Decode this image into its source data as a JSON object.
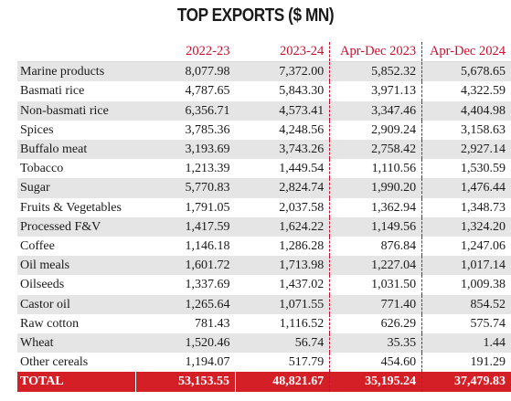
{
  "title": "TOP EXPORTS ($ MN)",
  "chart_data": {
    "type": "table",
    "title": "TOP EXPORTS ($ MN)",
    "columns": [
      "2022-23",
      "2023-24",
      "Apr-Dec 2023",
      "Apr-Dec 2024"
    ],
    "rows": [
      {
        "label": "Marine products",
        "values": [
          "8,077.98",
          "7,372.00",
          "5,852.32",
          "5,678.65"
        ]
      },
      {
        "label": "Basmati rice",
        "values": [
          "4,787.65",
          "5,843.30",
          "3,971.13",
          "4,322.59"
        ]
      },
      {
        "label": "Non-basmati rice",
        "values": [
          "6,356.71",
          "4,573.41",
          "3,347.46",
          "4,404.98"
        ]
      },
      {
        "label": "Spices",
        "values": [
          "3,785.36",
          "4,248.56",
          "2,909.24",
          "3,158.63"
        ]
      },
      {
        "label": "Buffalo meat",
        "values": [
          "3,193.69",
          "3,743.26",
          "2,758.42",
          "2,927.14"
        ]
      },
      {
        "label": "Tobacco",
        "values": [
          "1,213.39",
          "1,449.54",
          "1,110.56",
          "1,530.59"
        ]
      },
      {
        "label": "Sugar",
        "values": [
          "5,770.83",
          "2,824.74",
          "1,990.20",
          "1,476.44"
        ]
      },
      {
        "label": "Fruits & Vegetables",
        "values": [
          "1,791.05",
          "2,037.58",
          "1,362.94",
          "1,348.73"
        ]
      },
      {
        "label": "Processed F&V",
        "values": [
          "1,417.59",
          "1,624.22",
          "1,149.56",
          "1,324.20"
        ]
      },
      {
        "label": "Coffee",
        "values": [
          "1,146.18",
          "1,286.28",
          "876.84",
          "1,247.06"
        ]
      },
      {
        "label": "Oil meals",
        "values": [
          "1,601.72",
          "1,713.98",
          "1,227.04",
          "1,017.14"
        ]
      },
      {
        "label": "Oilseeds",
        "values": [
          "1,337.69",
          "1,437.02",
          "1,031.50",
          "1,009.38"
        ]
      },
      {
        "label": "Castor oil",
        "values": [
          "1,265.64",
          "1,071.55",
          "771.40",
          "854.52"
        ]
      },
      {
        "label": "Raw cotton",
        "values": [
          "781.43",
          "1,116.52",
          "626.29",
          "575.74"
        ]
      },
      {
        "label": "Wheat",
        "values": [
          "1,520.46",
          "56.74",
          "35.35",
          "1.44"
        ]
      },
      {
        "label": "Other cereals",
        "values": [
          "1,194.07",
          "517.79",
          "454.60",
          "191.29"
        ]
      }
    ],
    "total": {
      "label": "TOTAL",
      "values": [
        "53,153.55",
        "48,821.67",
        "35,195.24",
        "37,479.83"
      ]
    }
  },
  "colors": {
    "header": "#c8102e",
    "total_bg": "#d51f26",
    "shade": "#e5e5e5"
  }
}
